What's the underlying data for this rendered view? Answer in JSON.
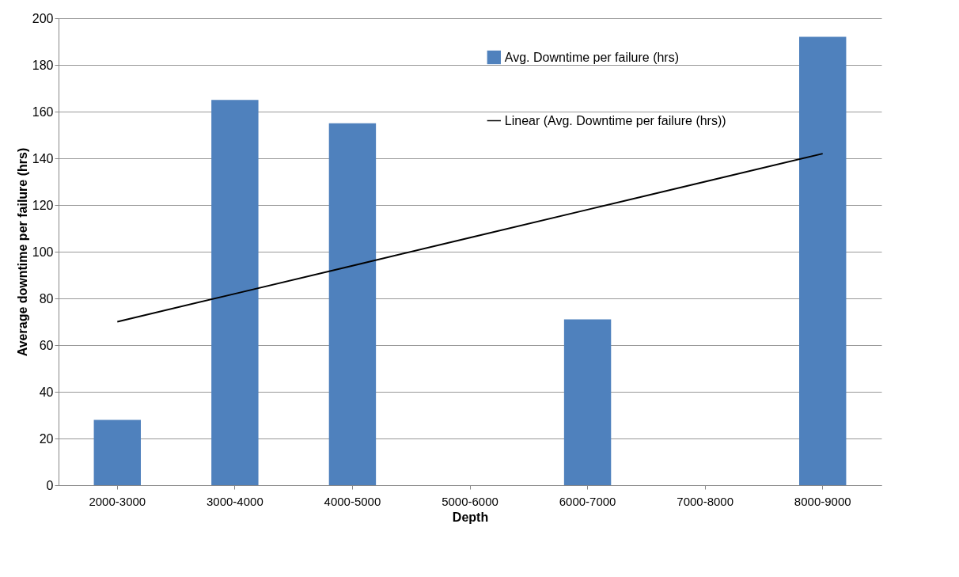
{
  "chart_data": {
    "type": "bar",
    "xlabel": "Depth",
    "ylabel": "Average downtime per failure (hrs)",
    "categories": [
      "2000-3000",
      "3000-4000",
      "4000-5000",
      "5000-6000",
      "6000-7000",
      "7000-8000",
      "8000-9000"
    ],
    "series": [
      {
        "name": "Avg. Downtime per failure (hrs)",
        "type": "bar",
        "color": "#4f81bd",
        "values": [
          28,
          165,
          155,
          null,
          71,
          null,
          192
        ]
      },
      {
        "name": "Linear (Avg. Downtime per failure (hrs))",
        "type": "line",
        "color": "#000000",
        "values": [
          70,
          82,
          94,
          106,
          118,
          130,
          142
        ]
      }
    ],
    "ylim": [
      0,
      200
    ],
    "yticks": [
      0,
      20,
      40,
      60,
      80,
      100,
      120,
      140,
      160,
      180,
      200
    ],
    "grid": "y",
    "legend": "top right"
  }
}
